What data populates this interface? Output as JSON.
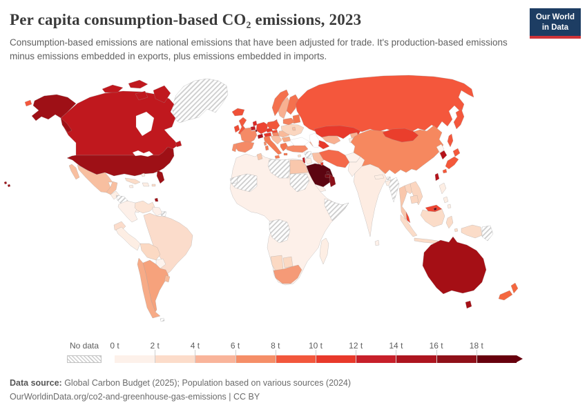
{
  "header": {
    "title": "Per capita consumption-based CO₂ emissions, 2023",
    "subtitle": "Consumption-based emissions are national emissions that have been adjusted for trade. It's production-based emissions minus emissions embedded in exports, plus emissions embedded in imports."
  },
  "logo": {
    "line1": "Our World",
    "line2": "in Data",
    "bg": "#1d3d63",
    "accent": "#cf3439"
  },
  "legend": {
    "no_data_label": "No data",
    "bins": [
      {
        "label": "0 t",
        "color": "#fdf1ea"
      },
      {
        "label": "2 t",
        "color": "#fcdcca"
      },
      {
        "label": "4 t",
        "color": "#f9b49a"
      },
      {
        "label": "6 t",
        "color": "#f58e68"
      },
      {
        "label": "8 t",
        "color": "#f2573c"
      },
      {
        "label": "10 t",
        "color": "#e8392b"
      },
      {
        "label": "12 t",
        "color": "#c7202a"
      },
      {
        "label": "14 t",
        "color": "#ad151f"
      },
      {
        "label": "16 t",
        "color": "#8f1019"
      },
      {
        "label": "18 t",
        "color": "#67000d"
      }
    ]
  },
  "footer": {
    "datasource_label": "Data source:",
    "datasource": " Global Carbon Budget (2025); Population based on various sources (2024)",
    "url": "OurWorldinData.org/co2-and-greenhouse-gas-emissions",
    "separator": " | ",
    "license": "CC BY"
  },
  "chart_data": {
    "type": "heatmap",
    "subtype": "choropleth-world-map",
    "title": "Per capita consumption-based CO₂ emissions, 2023",
    "unit": "tonnes CO₂ per person (t)",
    "year": 2023,
    "legend_position": "bottom",
    "bin_edges": [
      0,
      2,
      4,
      6,
      8,
      10,
      12,
      14,
      16,
      18
    ],
    "open_ended_top_bin": "18+ t",
    "no_data_style": "gray diagonal hatching",
    "countries": {
      "United States": "16–18 t",
      "Canada": "14–16 t",
      "Mexico": "2–4 t",
      "Greenland": "No data",
      "Guatemala": "0–2 t",
      "Honduras/Nicaragua": "No data",
      "Costa Rica/Panama": "0–2 t",
      "Cuba": "2–4 t",
      "Haiti/Dominican Rep.": "0–2 t",
      "Trinidad and Tobago": "16–18 t",
      "Colombia": "0–2 t",
      "Venezuela": "2–4 t",
      "Guyana/Suriname": "0–2 t",
      "French Guiana": "No data",
      "Brazil": "2–4 t",
      "Ecuador": "2–4 t",
      "Peru": "0–2 t",
      "Bolivia": "2–4 t",
      "Paraguay": "0–2 t",
      "Chile": "4–6 t",
      "Argentina": "4–6 t",
      "Uruguay": "2–4 t",
      "Iceland": "8–10 t",
      "United Kingdom": "8–10 t",
      "Ireland": "10–12 t",
      "Norway": "6–8 t",
      "Sweden": "4–6 t",
      "Finland": "6–8 t",
      "Denmark": "8–10 t",
      "Estonia/Latvia/Lithuania": "6–8 t",
      "Germany": "10–12 t",
      "Netherlands": "12–14 t",
      "Belgium": "14–16 t",
      "Luxembourg": "18+ t",
      "France": "6–8 t",
      "Switzerland": "14–16 t",
      "Austria": "10–12 t",
      "Czechia": "10–12 t",
      "Poland": "8–10 t",
      "Slovakia": "10–12 t",
      "Hungary": "6–8 t",
      "Spain": "6–8 t",
      "Portugal": "6–8 t",
      "Italy": "6–8 t",
      "Balkans": "4–6 t",
      "Romania": "4–6 t",
      "Bulgaria": "4–6 t",
      "Greece": "6–8 t",
      "Ukraine": "2–4 t",
      "Belarus": "6–8 t",
      "Moldova": "4–6 t",
      "Russia": "8–10 t",
      "Kazakhstan": "10–12 t",
      "Uzbekistan": "4–6 t",
      "Turkmenistan": "10–12 t",
      "Kyrgyzstan": "4–6 t",
      "Tajikistan": "0–2 t",
      "Georgia/Azerbaijan": "4–6 t",
      "Turkey": "6–8 t",
      "Cyprus": "2–4 t",
      "Syria": "No data",
      "Israel": "12–14 t",
      "Jordan": "0–2 t",
      "Iraq": "4–6 t",
      "Saudi Arabia": "18+ t",
      "Yemen": "0–2 t",
      "Oman": "16–18 t",
      "United Arab Emirates": "16–18 t",
      "Qatar": "18+ t",
      "Kuwait": "10–12 t",
      "Iran": "8–10 t",
      "Afghanistan": "0–2 t",
      "Pakistan": "0–2 t",
      "India": "0–2 t",
      "Nepal": "0–2 t",
      "Bangladesh": "0–2 t",
      "Sri Lanka": "0–2 t",
      "Bhutan": "No data",
      "Myanmar": "No data",
      "Thailand": "2–4 t",
      "Laos": "2–4 t",
      "Vietnam": "2–4 t",
      "Cambodia": "2–4 t",
      "Malaysia": "10–12 t",
      "Brunei": "18+ t",
      "Indonesia": "2–4 t",
      "Philippines": "0–2 t",
      "China": "6–8 t",
      "Mongolia": "10–12 t",
      "North Korea": "0–2 t",
      "South Korea": "12–14 t",
      "Japan": "8–10 t",
      "Taiwan": "12–14 t",
      "Papua New Guinea": "No data",
      "Indonesian New Guinea": "2–4 t",
      "Morocco/Algeria": "0–2 t",
      "Tunisia": "2–4 t",
      "Libya": "No data",
      "Egypt": "2–4 t",
      "Western Sahara": "No data",
      "Mauritania/Mali": "No data",
      "Sudan": "No data",
      "Somalia": "No data",
      "DR Congo": "No data",
      "Sub-Saharan Africa (most)": "0–2 t",
      "Namibia": "2–4 t",
      "Botswana": "2–4 t",
      "South Africa": "4–6 t",
      "Madagascar": "0–2 t",
      "Australia": "14–16 t",
      "New Zealand": "8–10 t"
    }
  },
  "map": {
    "ocean_color": "#ffffff",
    "border_color": "#9b9b9b",
    "fills": {
      "greenland": "nodata",
      "canada": "#c0181e",
      "alaska": "#9e1016",
      "usa": "#9e1016",
      "hawaii": "#9e1016",
      "stlawrence": "#f4573c",
      "mexico": "#f8bfa0",
      "guatemala": "#fdeee4",
      "honduras_nicaragua": "nodata",
      "costa_panama": "#fdeee4",
      "cuba": "#fbdcc8",
      "hispaniola": "#fdeee4",
      "jamaica": "#fdeee4",
      "puerto_rico": "#fbdcc8",
      "bahamas": "#fdeee4",
      "trinidad": "#9e1016",
      "colombia": "#fdf0e9",
      "venezuela": "#fce3d3",
      "guyana_suriname": "#fdf0e9",
      "french_guiana": "nodata",
      "brazil": "#fbdccb",
      "ecuador": "#fbdccb",
      "peru": "#fdeee4",
      "bolivia": "#fbd9c3",
      "paraguay": "#fdf3ed",
      "chile": "#f7ab87",
      "argentina": "#f6a27c",
      "uruguay": "#f8bb9a",
      "falkland": "nodata",
      "iceland": "#f05138",
      "uk": "#f25a3e",
      "ireland": "#ee4a33",
      "norway": "#f4714e",
      "sweden": "#f8b091",
      "finland": "#f4714e",
      "denmark": "#f0513a",
      "baltics": "#f4764f",
      "germany": "#ed4331",
      "netherlands": "#d92a28",
      "belgium": "#c01b22",
      "luxembourg": "#67000d",
      "france": "#f58a66",
      "switzerland": "#ad141c",
      "austria": "#e5382b",
      "czechia": "#e5382b",
      "poland": "#f1563a",
      "slovakia": "#ef4c34",
      "hungary": "#f58a66",
      "spain": "#f58a66",
      "portugal": "#f68e69",
      "italy": "#f47c55",
      "sicily": "#f47c55",
      "sardinia": "#f47c55",
      "corsica": "#f58a66",
      "balkans": "#f9c0a4",
      "romania": "#f9ba9a",
      "bulgaria": "#f8ab85",
      "greece": "#f4764f",
      "crete": "#f4764f",
      "ukraine": "#fbd6bf",
      "belarus": "#f4815d",
      "moldova": "#f9c0a4",
      "russia": "#f4573c",
      "kazakhstan": "#e8392b",
      "uzbekistan": "#f8b091",
      "turkmenistan": "#e8392b",
      "kyrgyzstan": "#f8b091",
      "tajikistan": "#fdeee4",
      "caucasus": "#f8b091",
      "turkey": "#f58a66",
      "cyprus": "#fbdcc8",
      "syria": "nodata",
      "israel": "#c01b22",
      "jordan": "#fdeee4",
      "iraq": "#f9c0a4",
      "saudi": "#5c0511",
      "yemen": "#fdf0e9",
      "oman": "#8c1019",
      "uae": "#7a0b14",
      "qatar": "#5c0511",
      "kuwait": "#e8392b",
      "iran": "#f4694a",
      "afghanistan": "#fdf2ec",
      "pakistan": "#fdf0e9",
      "india": "#fdece2",
      "nepal": "#fdeee4",
      "bangladesh": "#fdeee4",
      "srilanka": "#fdf0e9",
      "bhutan": "nodata",
      "myanmar": "nodata",
      "thailand": "#f9c7ac",
      "laos": "#fbd6c0",
      "vietnam": "#fbd6c0",
      "cambodia": "#fbd6c0",
      "malaysia": "#ee4532",
      "brunei": "#5c0511",
      "indonesia": "#fbdcc8",
      "philippines": "#fdeee4",
      "china": "#f6885f",
      "mongolia": "#ea3e2c",
      "north_korea": "#fff5f0",
      "south_korea": "#b5131b",
      "japan": "#f4583a",
      "taiwan": "#b5131b",
      "west_new_guinea": "#fbdcc8",
      "png": "nodata",
      "africa_base": "#fdf0e9",
      "western_sahara": "nodata",
      "mauritania_mali": "nodata",
      "libya": "nodata",
      "sudan": "nodata",
      "somalia": "nodata",
      "drc": "nodata",
      "egypt": "#f9c7ac",
      "tunisia": "#f9c7ac",
      "namibia": "#fbd9c3",
      "botswana": "#fbd9c3",
      "south_africa": "#f59a77",
      "madagascar": "#fdeee4",
      "australia": "#a50f15",
      "tasmania": "#a50f15",
      "new_zealand": "#f4673f"
    }
  }
}
